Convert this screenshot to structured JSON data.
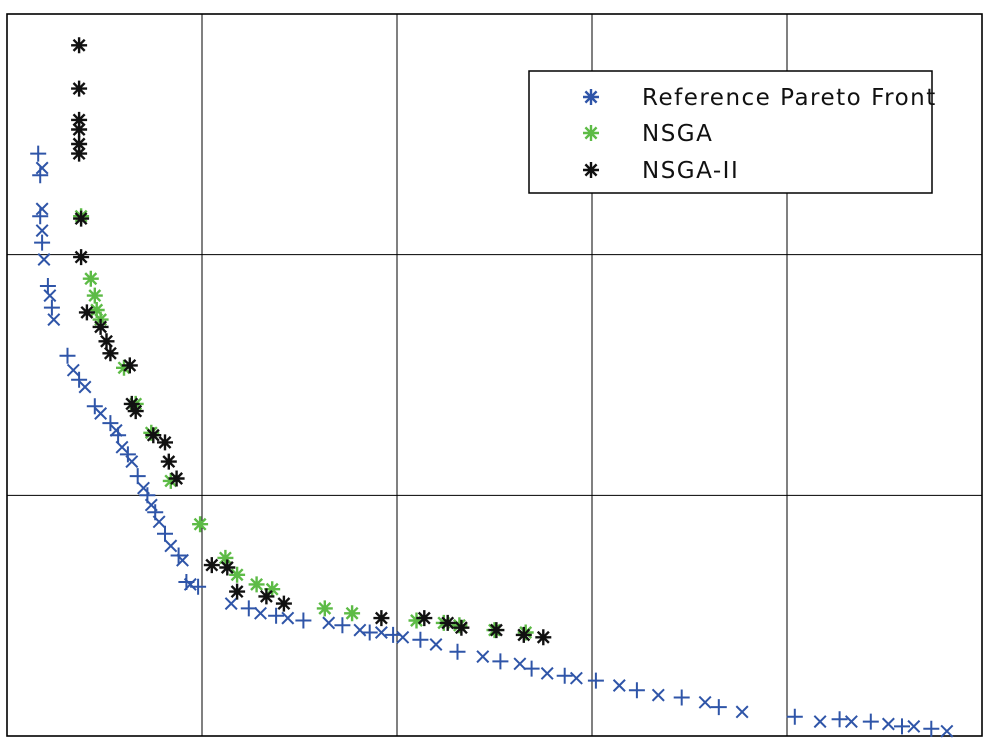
{
  "chart_data": {
    "type": "scatter",
    "xlim": [
      0,
      5
    ],
    "ylim": [
      0,
      3
    ],
    "grid": true,
    "legend_placement": "top-right",
    "series": [
      {
        "name": "Reference Pareto Front",
        "color": "#2f55a8",
        "marker": "plus-cross",
        "points": [
          [
            0.16,
            2.42
          ],
          [
            0.18,
            2.36
          ],
          [
            0.17,
            2.33
          ],
          [
            0.18,
            2.19
          ],
          [
            0.17,
            2.16
          ],
          [
            0.18,
            2.1
          ],
          [
            0.18,
            2.05
          ],
          [
            0.19,
            1.98
          ],
          [
            0.21,
            1.87
          ],
          [
            0.22,
            1.83
          ],
          [
            0.23,
            1.78
          ],
          [
            0.24,
            1.73
          ],
          [
            0.31,
            1.58
          ],
          [
            0.34,
            1.52
          ],
          [
            0.37,
            1.48
          ],
          [
            0.4,
            1.45
          ],
          [
            0.45,
            1.37
          ],
          [
            0.48,
            1.34
          ],
          [
            0.53,
            1.3
          ],
          [
            0.56,
            1.27
          ],
          [
            0.57,
            1.25
          ],
          [
            0.59,
            1.2
          ],
          [
            0.62,
            1.17
          ],
          [
            0.64,
            1.14
          ],
          [
            0.67,
            1.08
          ],
          [
            0.7,
            1.03
          ],
          [
            0.72,
            1.0
          ],
          [
            0.74,
            0.96
          ],
          [
            0.76,
            0.93
          ],
          [
            0.78,
            0.89
          ],
          [
            0.81,
            0.84
          ],
          [
            0.84,
            0.79
          ],
          [
            0.88,
            0.75
          ],
          [
            0.9,
            0.73
          ],
          [
            0.92,
            0.64
          ],
          [
            0.94,
            0.63
          ],
          [
            0.98,
            0.62
          ],
          [
            1.15,
            0.55
          ],
          [
            1.24,
            0.53
          ],
          [
            1.3,
            0.51
          ],
          [
            1.38,
            0.5
          ],
          [
            1.44,
            0.49
          ],
          [
            1.52,
            0.48
          ],
          [
            1.65,
            0.47
          ],
          [
            1.72,
            0.46
          ],
          [
            1.81,
            0.44
          ],
          [
            1.86,
            0.43
          ],
          [
            1.92,
            0.43
          ],
          [
            1.98,
            0.42
          ],
          [
            2.03,
            0.41
          ],
          [
            2.12,
            0.4
          ],
          [
            2.2,
            0.38
          ],
          [
            2.31,
            0.35
          ],
          [
            2.44,
            0.33
          ],
          [
            2.53,
            0.31
          ],
          [
            2.63,
            0.3
          ],
          [
            2.69,
            0.28
          ],
          [
            2.77,
            0.26
          ],
          [
            2.86,
            0.25
          ],
          [
            2.92,
            0.24
          ],
          [
            3.02,
            0.23
          ],
          [
            3.14,
            0.21
          ],
          [
            3.23,
            0.19
          ],
          [
            3.34,
            0.17
          ],
          [
            3.46,
            0.16
          ],
          [
            3.58,
            0.14
          ],
          [
            3.65,
            0.12
          ],
          [
            3.77,
            0.1
          ],
          [
            4.04,
            0.08
          ],
          [
            4.17,
            0.06
          ],
          [
            4.27,
            0.07
          ],
          [
            4.33,
            0.06
          ],
          [
            4.43,
            0.06
          ],
          [
            4.52,
            0.05
          ],
          [
            4.59,
            0.04
          ],
          [
            4.65,
            0.04
          ],
          [
            4.74,
            0.03
          ],
          [
            4.82,
            0.02
          ]
        ]
      },
      {
        "name": "NSGA",
        "color": "#5dbb46",
        "marker": "asterisk",
        "points": [
          [
            0.38,
            2.16
          ],
          [
            0.43,
            1.9
          ],
          [
            0.45,
            1.83
          ],
          [
            0.46,
            1.77
          ],
          [
            0.48,
            1.73
          ],
          [
            0.6,
            1.53
          ],
          [
            0.66,
            1.38
          ],
          [
            0.74,
            1.26
          ],
          [
            0.84,
            1.06
          ],
          [
            0.99,
            0.88
          ],
          [
            1.12,
            0.74
          ],
          [
            1.18,
            0.67
          ],
          [
            1.28,
            0.63
          ],
          [
            1.36,
            0.61
          ],
          [
            1.63,
            0.53
          ],
          [
            1.77,
            0.51
          ],
          [
            2.1,
            0.48
          ],
          [
            2.24,
            0.47
          ],
          [
            2.32,
            0.46
          ],
          [
            2.5,
            0.44
          ],
          [
            2.66,
            0.43
          ]
        ]
      },
      {
        "name": "NSGA-II",
        "color": "#111111",
        "marker": "asterisk",
        "points": [
          [
            0.37,
            2.87
          ],
          [
            0.37,
            2.69
          ],
          [
            0.37,
            2.56
          ],
          [
            0.37,
            2.52
          ],
          [
            0.37,
            2.46
          ],
          [
            0.37,
            2.42
          ],
          [
            0.38,
            2.15
          ],
          [
            0.38,
            1.99
          ],
          [
            0.41,
            1.76
          ],
          [
            0.48,
            1.7
          ],
          [
            0.51,
            1.64
          ],
          [
            0.53,
            1.59
          ],
          [
            0.63,
            1.54
          ],
          [
            0.64,
            1.38
          ],
          [
            0.66,
            1.35
          ],
          [
            0.75,
            1.25
          ],
          [
            0.81,
            1.22
          ],
          [
            0.83,
            1.14
          ],
          [
            0.87,
            1.07
          ],
          [
            1.05,
            0.71
          ],
          [
            1.13,
            0.7
          ],
          [
            1.18,
            0.6
          ],
          [
            1.33,
            0.58
          ],
          [
            1.42,
            0.55
          ],
          [
            1.92,
            0.49
          ],
          [
            2.14,
            0.49
          ],
          [
            2.26,
            0.47
          ],
          [
            2.33,
            0.45
          ],
          [
            2.51,
            0.44
          ],
          [
            2.65,
            0.42
          ],
          [
            2.75,
            0.41
          ]
        ]
      }
    ]
  }
}
